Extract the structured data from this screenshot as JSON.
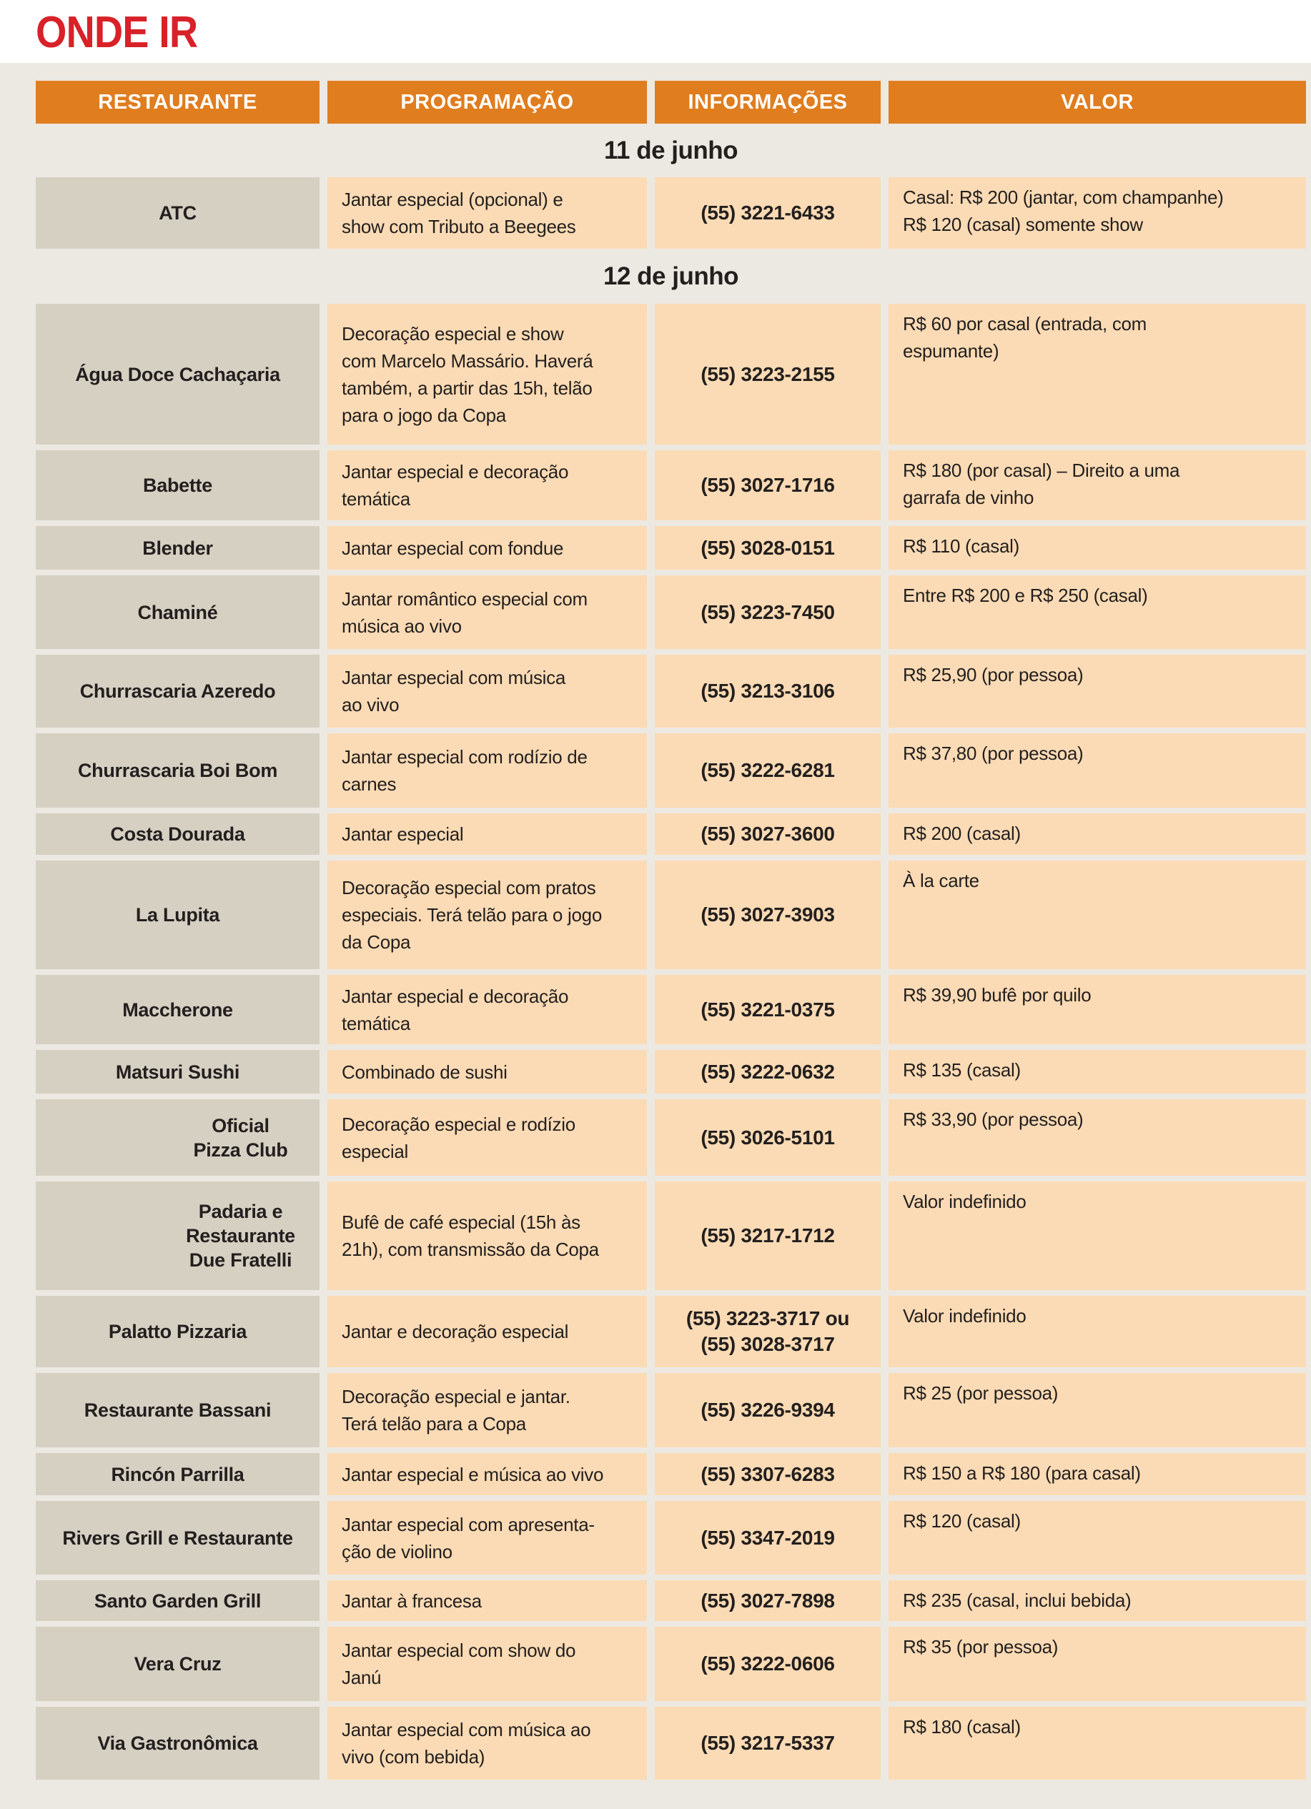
{
  "title": "ONDE IR",
  "colors": {
    "title_red": "#D82128",
    "header_orange": "#E07D1F",
    "header_text": "#FFFFFF",
    "cell_peach": "#FBDBB5",
    "cell_beige": "#D6D0C3",
    "panel_gray": "#ECE9E2",
    "text_black": "#231F1E"
  },
  "table": {
    "headers": [
      "RESTAURANTE",
      "PROGRAMAÇÃO",
      "INFORMAÇÕES",
      "VALOR"
    ],
    "sections": [
      {
        "date": "11 de junho",
        "rows": [
          {
            "name": "ATC",
            "program": "Jantar especial (opcional) e\nshow com Tributo a Beegees",
            "info": "(55) 3221-6433",
            "price": "Casal: R$ 200 (jantar, com champanhe)\nR$ 120 (casal) somente show"
          }
        ]
      },
      {
        "date": "12 de junho",
        "rows": [
          {
            "name": "Água Doce Cachaçaria",
            "program": "Decoração especial e show\ncom Marcelo Massário. Haverá\ntambém, a partir das 15h, telão\npara o jogo da Copa",
            "info": "(55) 3223-2155",
            "price": "R$ 60 por casal (entrada, com\nespumante)"
          },
          {
            "name": "Babette",
            "program": "Jantar especial e decoração\ntemática",
            "info": "(55) 3027-1716",
            "price": "R$ 180 (por casal) – Direito a uma\ngarrafa de vinho"
          },
          {
            "name": "Blender",
            "program": "Jantar especial com fondue",
            "info": "(55) 3028-0151",
            "price": "R$ 110 (casal)"
          },
          {
            "name": "Chaminé",
            "program": "Jantar romântico especial com\nmúsica ao vivo",
            "info": "(55) 3223-7450",
            "price": "Entre R$ 200 e R$ 250 (casal)"
          },
          {
            "name": "Churrascaria Azeredo",
            "program": "Jantar especial com música\nao vivo",
            "info": "(55) 3213-3106",
            "price": "R$ 25,90 (por pessoa)"
          },
          {
            "name": "Churrascaria Boi Bom",
            "program": "Jantar especial com rodízio de\ncarnes",
            "info": "(55) 3222-6281",
            "price": "R$ 37,80 (por pessoa)"
          },
          {
            "name": "Costa Dourada",
            "program": "Jantar especial",
            "info": "(55) 3027-3600",
            "price": "R$ 200 (casal)"
          },
          {
            "name": "La Lupita",
            "program": "Decoração especial com pratos\nespeciais. Terá telão para o jogo\nda Copa",
            "info": "(55) 3027-3903",
            "price": "À la carte"
          },
          {
            "name": "Maccherone",
            "program": "Jantar especial e decoração\ntemática",
            "info": "(55) 3221-0375",
            "price": "R$ 39,90 bufê por quilo"
          },
          {
            "name": "Matsuri Sushi",
            "program": "Combinado de sushi",
            "info": "(55) 3222-0632",
            "price": "R$ 135 (casal)"
          },
          {
            "name": "Oficial\nPizza Club",
            "program": "Decoração especial e rodízio\nespecial",
            "info": "(55) 3026-5101",
            "price": "R$ 33,90 (por pessoa)"
          },
          {
            "name": "Padaria e\nRestaurante\nDue Fratelli",
            "program": "Bufê de café especial (15h às\n21h), com transmissão da Copa",
            "info": "(55) 3217-1712",
            "price": "Valor indefinido"
          },
          {
            "name": "Palatto Pizzaria",
            "program": "Jantar e decoração especial",
            "info": "(55) 3223-3717 ou\n(55) 3028-3717",
            "price": "Valor indefinido"
          },
          {
            "name": "Restaurante Bassani",
            "program": "Decoração especial e jantar.\nTerá telão para a Copa",
            "info": "(55) 3226-9394",
            "price": "R$ 25 (por pessoa)"
          },
          {
            "name": "Rincón Parrilla",
            "program": "Jantar especial e música ao vivo",
            "info": "(55) 3307-6283",
            "price": "R$ 150 a R$ 180 (para casal)"
          },
          {
            "name": "Rivers Grill e Restaurante",
            "program": "Jantar especial com apresenta-\nção de violino",
            "info": "(55) 3347-2019",
            "price": "R$ 120 (casal)"
          },
          {
            "name": "Santo Garden Grill",
            "program": "Jantar à francesa",
            "info": "(55) 3027-7898",
            "price": "R$ 235 (casal, inclui bebida)"
          },
          {
            "name": "Vera Cruz",
            "program": "Jantar especial com show do\nJanú",
            "info": "(55) 3222-0606",
            "price": "R$ 35 (por pessoa)"
          },
          {
            "name": "Via Gastronômica",
            "program": "Jantar especial com música ao\nvivo (com bebida)",
            "info": "(55) 3217-5337",
            "price": "R$ 180 (casal)"
          }
        ]
      }
    ]
  }
}
